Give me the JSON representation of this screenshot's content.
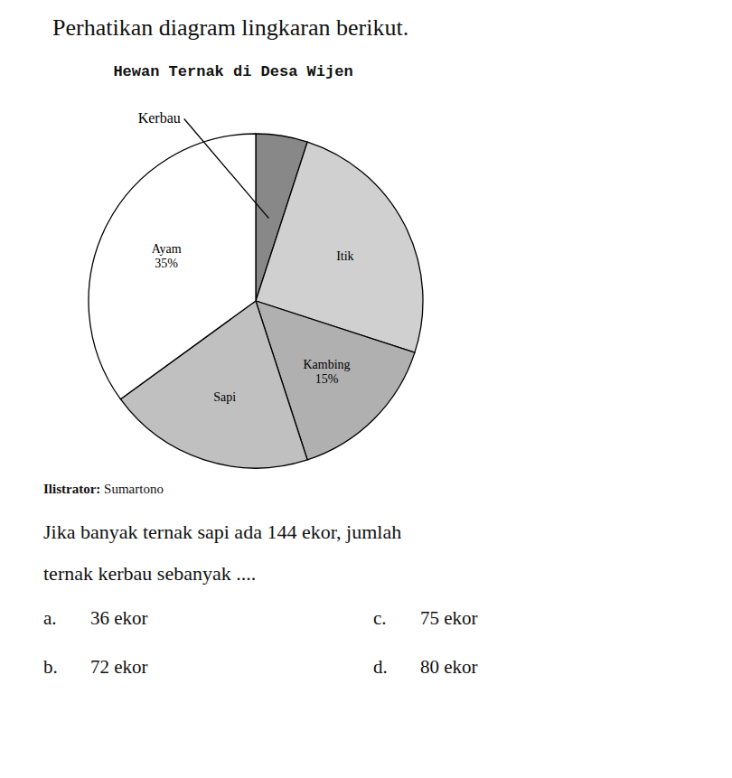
{
  "chart_data": {
    "type": "pie",
    "title": "Hewan Ternak di Desa Wijen",
    "categories": [
      "Kerbau",
      "Itik",
      "Kambing\n15%",
      "Sapi",
      "Ayam\n35%"
    ],
    "values": [
      5,
      25,
      15,
      20,
      35
    ],
    "colors": [
      "#888888",
      "#d0d0d0",
      "#b0b0b0",
      "#c0c0c0",
      "#ffffff"
    ],
    "annotations": [
      "Perhatikan diagram lingkaran berikut.",
      "Ilistrator:",
      "Sumartono",
      "Jika banyak ternak sapi ada 144 ekor, jumlah",
      "ternak kerbau sebanyak ....",
      "a.",
      "36 ekor",
      "b.",
      "72 ekor",
      "c.",
      "75 ekor",
      "d.",
      "80 ekor"
    ]
  }
}
